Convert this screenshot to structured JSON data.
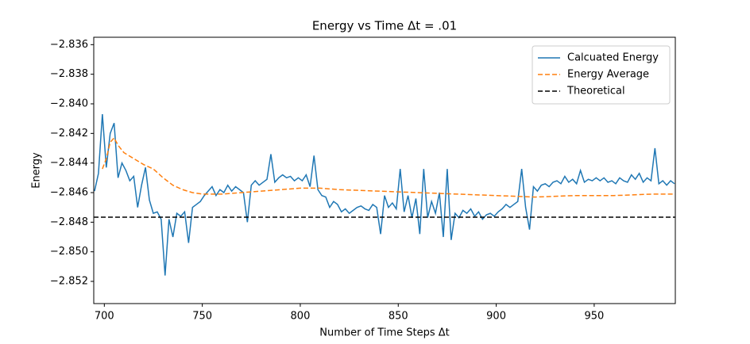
{
  "chart_data": {
    "type": "line",
    "title": "Energy vs Time Δt = .01",
    "xlabel": "Number of Time Steps Δt",
    "ylabel": "Energy",
    "xlim": [
      694.6,
      991.4
    ],
    "ylim": [
      -2.8535,
      -2.8355
    ],
    "xticks": [
      700,
      750,
      800,
      850,
      900,
      950
    ],
    "yticks": [
      {
        "value": -2.836,
        "label": "−2.836"
      },
      {
        "value": -2.838,
        "label": "−2.838"
      },
      {
        "value": -2.84,
        "label": "−2.840"
      },
      {
        "value": -2.842,
        "label": "−2.842"
      },
      {
        "value": -2.844,
        "label": "−2.844"
      },
      {
        "value": -2.846,
        "label": "−2.846"
      },
      {
        "value": -2.848,
        "label": "−2.848"
      },
      {
        "value": -2.85,
        "label": "−2.850"
      },
      {
        "value": -2.852,
        "label": "−2.852"
      }
    ],
    "legend": "upper right",
    "series": [
      {
        "name": "Calcuated Energy",
        "color": "#1f77b4",
        "linestyle": "solid",
        "x": [
          695,
          697,
          699,
          701,
          703,
          705,
          707,
          709,
          711,
          713,
          715,
          717,
          719,
          721,
          723,
          725,
          727,
          729,
          731,
          733,
          735,
          737,
          739,
          741,
          743,
          745,
          747,
          749,
          751,
          753,
          755,
          757,
          759,
          761,
          763,
          765,
          767,
          769,
          771,
          773,
          775,
          777,
          779,
          781,
          783,
          785,
          787,
          789,
          791,
          793,
          795,
          797,
          799,
          801,
          803,
          805,
          807,
          809,
          811,
          813,
          815,
          817,
          819,
          821,
          823,
          825,
          827,
          829,
          831,
          833,
          835,
          837,
          839,
          841,
          843,
          845,
          847,
          849,
          851,
          853,
          855,
          857,
          859,
          861,
          863,
          865,
          867,
          869,
          871,
          873,
          875,
          877,
          879,
          881,
          883,
          885,
          887,
          889,
          891,
          893,
          895,
          897,
          899,
          901,
          903,
          905,
          907,
          909,
          911,
          913,
          915,
          917,
          919,
          921,
          923,
          925,
          927,
          929,
          931,
          933,
          935,
          937,
          939,
          941,
          943,
          945,
          947,
          949,
          951,
          953,
          955,
          957,
          959,
          961,
          963,
          965,
          967,
          969,
          971,
          973,
          975,
          977,
          979,
          981,
          983,
          985,
          987,
          989,
          991
        ],
        "values": [
          -2.8459,
          -2.8447,
          -2.8407,
          -2.8443,
          -2.842,
          -2.8413,
          -2.845,
          -2.844,
          -2.8445,
          -2.8452,
          -2.8449,
          -2.847,
          -2.8455,
          -2.8443,
          -2.8465,
          -2.8474,
          -2.8473,
          -2.8478,
          -2.8516,
          -2.8478,
          -2.849,
          -2.8474,
          -2.8476,
          -2.8473,
          -2.8494,
          -2.847,
          -2.8468,
          -2.8466,
          -2.8462,
          -2.8459,
          -2.8456,
          -2.8462,
          -2.8458,
          -2.846,
          -2.8455,
          -2.8459,
          -2.8456,
          -2.8458,
          -2.846,
          -2.848,
          -2.8455,
          -2.8452,
          -2.8455,
          -2.8453,
          -2.8451,
          -2.8434,
          -2.8453,
          -2.845,
          -2.8448,
          -2.845,
          -2.8449,
          -2.8452,
          -2.845,
          -2.8452,
          -2.8448,
          -2.8456,
          -2.8435,
          -2.8458,
          -2.8462,
          -2.8463,
          -2.847,
          -2.8466,
          -2.8468,
          -2.8473,
          -2.8471,
          -2.8474,
          -2.8472,
          -2.847,
          -2.8469,
          -2.8471,
          -2.8472,
          -2.8468,
          -2.847,
          -2.8488,
          -2.8462,
          -2.847,
          -2.8467,
          -2.8471,
          -2.8444,
          -2.8473,
          -2.8462,
          -2.8477,
          -2.8464,
          -2.8488,
          -2.8444,
          -2.8477,
          -2.8466,
          -2.8474,
          -2.846,
          -2.849,
          -2.8444,
          -2.8492,
          -2.8474,
          -2.8477,
          -2.8472,
          -2.8474,
          -2.8471,
          -2.8476,
          -2.8473,
          -2.8478,
          -2.8475,
          -2.8474,
          -2.8476,
          -2.8473,
          -2.8471,
          -2.8468,
          -2.847,
          -2.8468,
          -2.8466,
          -2.8444,
          -2.847,
          -2.8485,
          -2.8456,
          -2.8459,
          -2.8455,
          -2.8454,
          -2.8456,
          -2.8453,
          -2.8452,
          -2.8454,
          -2.8449,
          -2.8453,
          -2.8451,
          -2.8454,
          -2.8445,
          -2.8453,
          -2.8451,
          -2.8452,
          -2.845,
          -2.8452,
          -2.845,
          -2.8453,
          -2.8452,
          -2.8454,
          -2.845,
          -2.8452,
          -2.8453,
          -2.8448,
          -2.8451,
          -2.8447,
          -2.8453,
          -2.845,
          -2.8452,
          -2.843,
          -2.8454,
          -2.8452,
          -2.8455,
          -2.8452,
          -2.8454
        ]
      },
      {
        "name": "Energy Average",
        "color": "#ff7f0e",
        "linestyle": "dashed",
        "x": [
          699,
          701,
          703,
          705,
          707,
          710,
          715,
          720,
          725,
          730,
          735,
          740,
          745,
          750,
          760,
          770,
          780,
          790,
          800,
          810,
          820,
          840,
          860,
          880,
          900,
          920,
          940,
          960,
          980,
          991
        ],
        "values": [
          -2.8444,
          -2.8437,
          -2.8426,
          -2.8423,
          -2.8428,
          -2.8433,
          -2.8437,
          -2.8441,
          -2.8444,
          -2.845,
          -2.8455,
          -2.8458,
          -2.846,
          -2.8461,
          -2.8461,
          -2.846,
          -2.8459,
          -2.8458,
          -2.8457,
          -2.8457,
          -2.8458,
          -2.8459,
          -2.846,
          -2.8461,
          -2.8462,
          -2.8463,
          -2.8462,
          -2.8462,
          -2.8461,
          -2.8461
        ]
      }
    ],
    "hlines": [
      {
        "name": "Theoretical",
        "color": "#000000",
        "linestyle": "dashed",
        "value": -2.84766
      }
    ]
  }
}
